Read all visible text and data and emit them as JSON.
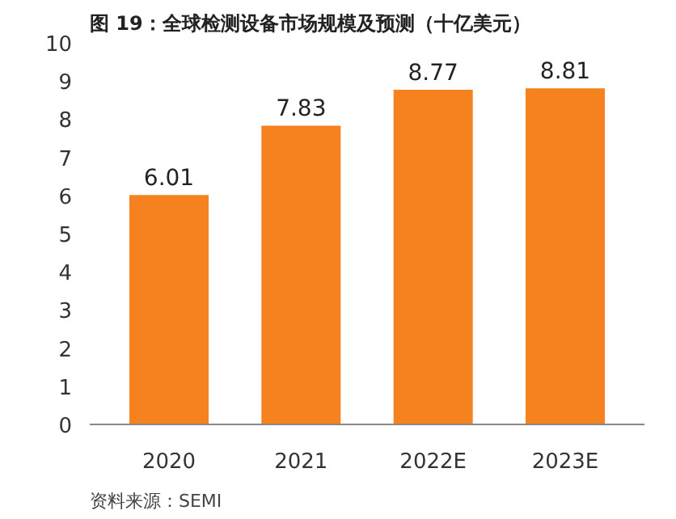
{
  "chart_data": {
    "type": "bar",
    "title": "图 19：全球检测设备市场规模及预测（十亿美元）",
    "categories": [
      "2020",
      "2021",
      "2022E",
      "2023E"
    ],
    "values": [
      6.01,
      7.83,
      8.77,
      8.81
    ],
    "color": "#f5821f",
    "ylim": [
      0,
      10
    ],
    "yticks": [
      0,
      1,
      2,
      3,
      4,
      5,
      6,
      7,
      8,
      9,
      10
    ],
    "data_labels": true,
    "grid": false,
    "annotations": [
      "资料来源：SEMI"
    ]
  }
}
